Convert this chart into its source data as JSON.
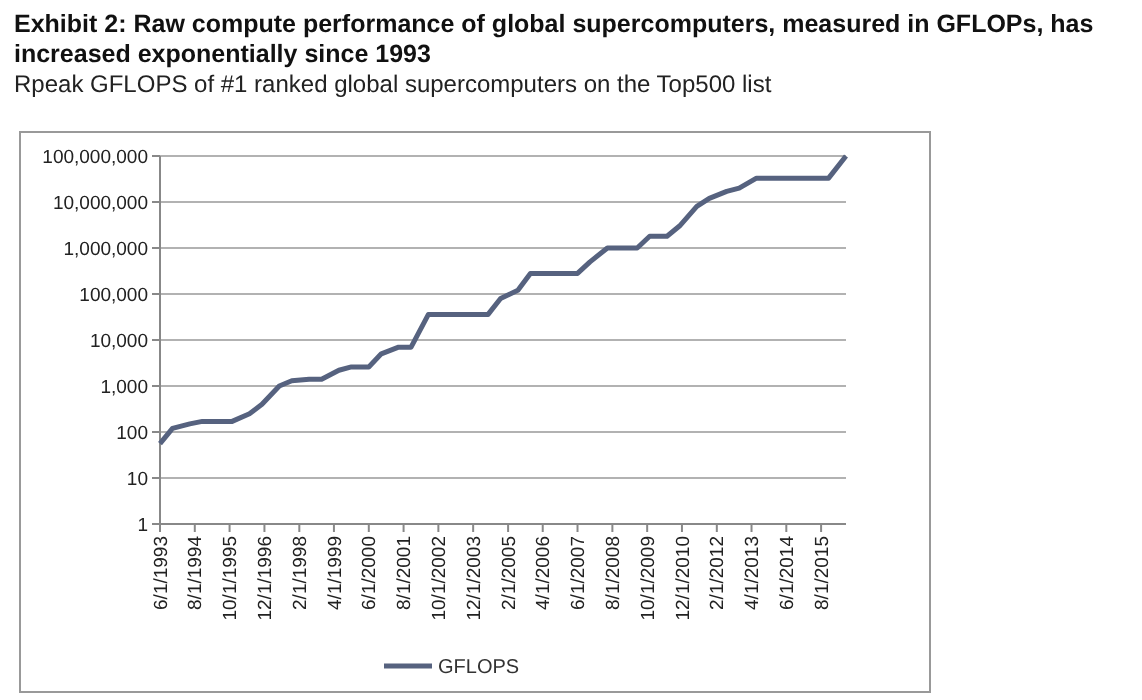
{
  "chart_data": {
    "type": "line",
    "title": "Exhibit 2: Raw compute performance of global supercomputers, measured in GFLOPs, has increased exponentially since 1993",
    "subtitle": "Rpeak GFLOPS of #1 ranked global supercomputers on the Top500 list",
    "x": [
      "1993-06",
      "1993-11",
      "1994-06",
      "1994-11",
      "1995-06",
      "1995-11",
      "1996-06",
      "1996-11",
      "1997-06",
      "1997-11",
      "1998-06",
      "1998-11",
      "1999-06",
      "1999-11",
      "2000-06",
      "2000-11",
      "2001-06",
      "2001-11",
      "2002-06",
      "2002-11",
      "2003-06",
      "2003-11",
      "2004-06",
      "2004-11",
      "2005-06",
      "2005-11",
      "2006-06",
      "2006-11",
      "2007-06",
      "2007-11",
      "2008-06",
      "2008-11",
      "2009-06",
      "2009-11",
      "2010-06",
      "2010-11",
      "2011-06",
      "2011-11",
      "2012-06",
      "2012-11",
      "2013-06",
      "2013-11",
      "2014-06",
      "2014-11",
      "2015-06",
      "2015-11",
      "2016-06"
    ],
    "series": [
      {
        "name": "GFLOPS",
        "color": "#56627f",
        "values": [
          56,
          120,
          150,
          170,
          170,
          170,
          250,
          400,
          1000,
          1300,
          1400,
          1400,
          2200,
          2600,
          2600,
          5000,
          7000,
          7000,
          36000,
          36000,
          36000,
          36000,
          36000,
          80000,
          120000,
          280000,
          280000,
          280000,
          280000,
          500000,
          1000000,
          1000000,
          1000000,
          1800000,
          1800000,
          3000000,
          8000000,
          12000000,
          17000000,
          20000000,
          33000000,
          33000000,
          33000000,
          33000000,
          33000000,
          33000000,
          100000000
        ]
      }
    ],
    "log": "y",
    "ylim": [
      1,
      100000000
    ],
    "yticks": [
      {
        "value": 1,
        "label": "1"
      },
      {
        "value": 10,
        "label": "10"
      },
      {
        "value": 100,
        "label": "100"
      },
      {
        "value": 1000,
        "label": "1,000"
      },
      {
        "value": 10000,
        "label": "10,000"
      },
      {
        "value": 100000,
        "label": "100,000"
      },
      {
        "value": 1000000,
        "label": "1,000,000"
      },
      {
        "value": 10000000,
        "label": "10,000,000"
      },
      {
        "value": 100000000,
        "label": "100,000,000"
      }
    ],
    "xlim": [
      "1993-06-01",
      "2016-06-01"
    ],
    "xticks": [
      {
        "value": "1993-06-01",
        "label": "6/1/1993"
      },
      {
        "value": "1994-08-01",
        "label": "8/1/1994"
      },
      {
        "value": "1995-10-01",
        "label": "10/1/1995"
      },
      {
        "value": "1996-12-01",
        "label": "12/1/1996"
      },
      {
        "value": "1998-02-01",
        "label": "2/1/1998"
      },
      {
        "value": "1999-04-01",
        "label": "4/1/1999"
      },
      {
        "value": "2000-06-01",
        "label": "6/1/2000"
      },
      {
        "value": "2001-08-01",
        "label": "8/1/2001"
      },
      {
        "value": "2002-10-01",
        "label": "10/1/2002"
      },
      {
        "value": "2003-12-01",
        "label": "12/1/2003"
      },
      {
        "value": "2005-02-01",
        "label": "2/1/2005"
      },
      {
        "value": "2006-04-01",
        "label": "4/1/2006"
      },
      {
        "value": "2007-06-01",
        "label": "6/1/2007"
      },
      {
        "value": "2008-08-01",
        "label": "8/1/2008"
      },
      {
        "value": "2009-10-01",
        "label": "10/1/2009"
      },
      {
        "value": "2010-12-01",
        "label": "12/1/2010"
      },
      {
        "value": "2012-02-01",
        "label": "2/1/2012"
      },
      {
        "value": "2013-04-01",
        "label": "4/1/2013"
      },
      {
        "value": "2014-06-01",
        "label": "6/1/2014"
      },
      {
        "value": "2015-08-01",
        "label": "8/1/2015"
      }
    ],
    "grid": "y",
    "legend": "bottom",
    "marker": "none",
    "line_style": "solid"
  }
}
